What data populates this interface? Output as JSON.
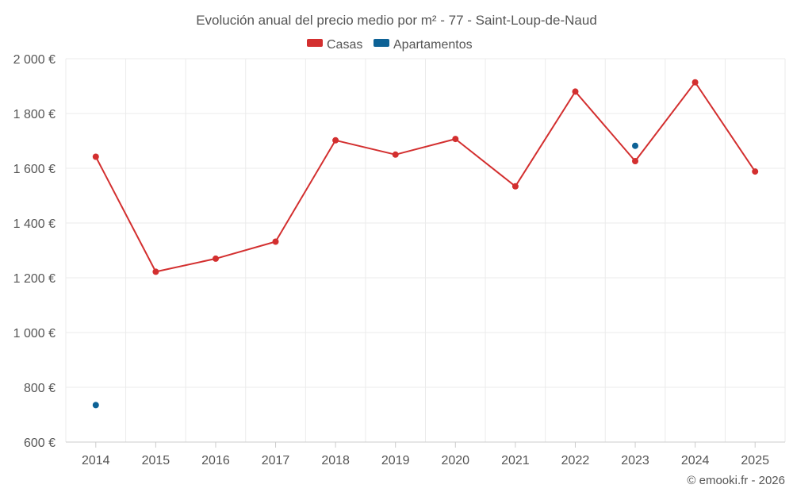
{
  "chart_data": {
    "type": "line",
    "title": "Evolución anual del precio medio por m² - 77 - Saint-Loup-de-Naud",
    "categories": [
      "2014",
      "2015",
      "2016",
      "2017",
      "2018",
      "2019",
      "2020",
      "2021",
      "2022",
      "2023",
      "2024",
      "2025"
    ],
    "y_ticks": [
      "600 €",
      "800 €",
      "1 000 €",
      "1 200 €",
      "1 400 €",
      "1 600 €",
      "1 800 €",
      "2 000 €"
    ],
    "ylim": [
      600,
      2000
    ],
    "grid": true,
    "legend_position": "top-center",
    "series": [
      {
        "name": "Casas",
        "color": "#d32f2f",
        "values": [
          1642,
          1222,
          1270,
          1332,
          1702,
          1650,
          1707,
          1534,
          1880,
          1626,
          1914,
          1588
        ]
      },
      {
        "name": "Apartamentos",
        "color": "#0d6296",
        "values": [
          735,
          null,
          null,
          null,
          null,
          null,
          null,
          null,
          null,
          1682,
          null,
          null
        ]
      }
    ]
  },
  "footer": {
    "credit": "© emooki.fr - 2026"
  }
}
